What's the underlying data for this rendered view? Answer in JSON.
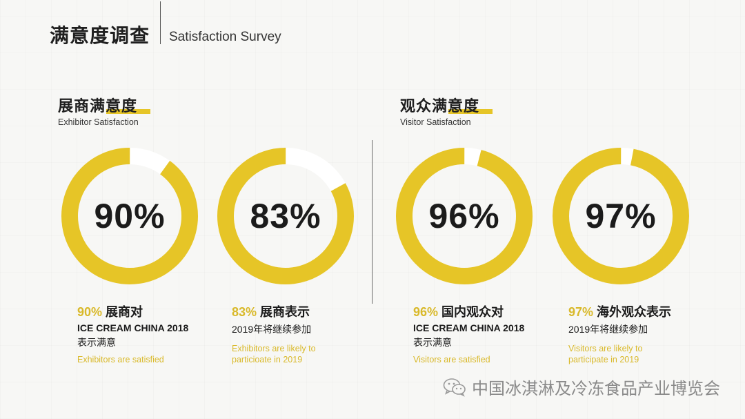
{
  "header": {
    "title_zh": "满意度调查",
    "title_en": "Satisfaction Survey"
  },
  "sections": [
    {
      "title_zh": "展商满意度",
      "title_en": "Exhibitor Satisfaction"
    },
    {
      "title_zh": "观众满意度",
      "title_en": "Visitor Satisfaction"
    }
  ],
  "chart_data": {
    "type": "donut",
    "accent_color": "#e6c527",
    "track_color": "#ffffff",
    "items": [
      {
        "value": 90,
        "label": "90%",
        "caption_num": "90%",
        "caption_title": " 展商对",
        "caption_line2": "ICE CREAM CHINA 2018",
        "caption_line3": "表示满意",
        "caption_en": "Exhibitors are satisfied"
      },
      {
        "value": 83,
        "label": "83%",
        "caption_num": "83%",
        "caption_title": " 展商表示",
        "caption_line2": "2019年将继续参加",
        "caption_line3": "",
        "caption_en": "Exhibitors are likely to particioate in 2019"
      },
      {
        "value": 96,
        "label": "96%",
        "caption_num": "96%",
        "caption_title": " 国内观众对",
        "caption_line2": "ICE CREAM CHINA 2018",
        "caption_line3": "表示满意",
        "caption_en": "Visitors are satisfied"
      },
      {
        "value": 97,
        "label": "97%",
        "caption_num": "97%",
        "caption_title": " 海外观众表示",
        "caption_line2": "2019年将继续参加",
        "caption_line3": "",
        "caption_en": "Visitors are likely to participate in 2019"
      }
    ]
  },
  "watermark": {
    "text": "中国冰淇淋及冷冻食品产业博览会",
    "icon": "wechat-icon"
  }
}
